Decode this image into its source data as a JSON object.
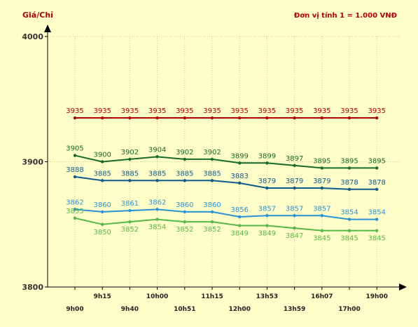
{
  "chart_data": {
    "type": "line",
    "ylabel": "Giá/Chỉ",
    "unit_note": "Đơn vị tính 1 = 1.000 VNĐ",
    "ylim": [
      3800,
      4000
    ],
    "yticks": [
      "3800",
      "3900",
      "4000"
    ],
    "grid": true,
    "categories": [
      "9h00",
      "9h15",
      "9h40",
      "10h00",
      "10h51",
      "11h15",
      "12h00",
      "13h53",
      "13h59",
      "16h07",
      "17h00",
      "19h00"
    ],
    "series": [
      {
        "color": "#b30000",
        "values": [
          3935,
          3935,
          3935,
          3935,
          3935,
          3935,
          3935,
          3935,
          3935,
          3935,
          3935,
          3935
        ]
      },
      {
        "color": "#176b2c",
        "values": [
          3905,
          3900,
          3902,
          3904,
          3902,
          3902,
          3899,
          3899,
          3897,
          3895,
          3895,
          3895
        ]
      },
      {
        "color": "#105a8c",
        "values": [
          3888,
          3885,
          3885,
          3885,
          3885,
          3885,
          3883,
          3879,
          3879,
          3879,
          3878,
          3878
        ]
      },
      {
        "color": "#2a93d5",
        "values": [
          3862,
          3860,
          3861,
          3862,
          3860,
          3860,
          3856,
          3857,
          3857,
          3857,
          3854,
          3854
        ]
      },
      {
        "color": "#55b84a",
        "values": [
          3855,
          3850,
          3852,
          3854,
          3852,
          3852,
          3849,
          3849,
          3847,
          3845,
          3845,
          3845
        ]
      }
    ]
  }
}
